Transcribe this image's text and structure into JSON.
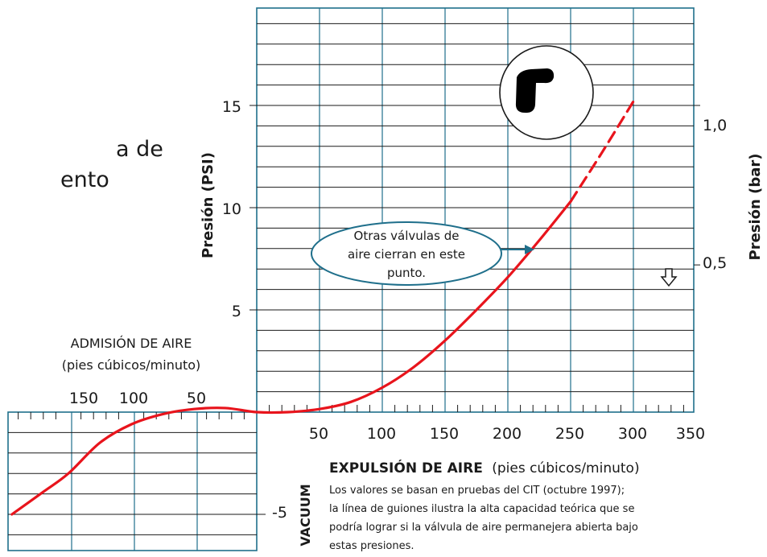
{
  "partial_text": [
    "a de",
    "ento"
  ],
  "chart_data": {
    "type": "line",
    "ylabel_left": "Presión (PSI)",
    "ylabel_right": "Presión (bar)",
    "yticks_left": [
      {
        "value": 15,
        "label": "15"
      },
      {
        "value": 10,
        "label": "10"
      },
      {
        "value": 5,
        "label": "5"
      },
      {
        "value": -5,
        "label": "-5"
      }
    ],
    "yticks_right": [
      {
        "value": 1.0,
        "label": "1,0"
      },
      {
        "value": 0.5,
        "label": "0,5"
      }
    ],
    "xticks_exhaust": [
      {
        "value": 50,
        "label": "50"
      },
      {
        "value": 100,
        "label": "100"
      },
      {
        "value": 150,
        "label": "150"
      },
      {
        "value": 200,
        "label": "200"
      },
      {
        "value": 250,
        "label": "250"
      },
      {
        "value": 300,
        "label": "300"
      },
      {
        "value": 350,
        "label": "350"
      }
    ],
    "xticks_intake": [
      {
        "value": 150,
        "label": "150"
      },
      {
        "value": 100,
        "label": "100"
      },
      {
        "value": 50,
        "label": "50"
      }
    ],
    "intake_label": "ADMISIÓN DE AIRE",
    "intake_units": "(pies cúbicos/minuto)",
    "exhaust_label_bold": "EXPULSIÓN DE AIRE",
    "exhaust_units": "(pies cúbicos/minuto)",
    "vacuum_label": "VACUUM",
    "note_lines": [
      "Los valores se basan en pruebas del CIT (octubre 1997);",
      "la línea de guiones ilustra la alta capacidad teórica que se",
      "podría lograr si la válvula de aire permanejera abierta bajo",
      "estas presiones."
    ],
    "annotation_lines": [
      "Otras válvulas de",
      "aire cierran en este",
      "punto."
    ],
    "series": [
      {
        "style": "solid",
        "color": "#e8141c",
        "points": [
          [
            -195,
            -5.0
          ],
          [
            -170,
            -3.9
          ],
          [
            -150,
            -3.0
          ],
          [
            -125,
            -1.5
          ],
          [
            -100,
            -0.6
          ],
          [
            -75,
            -0.1
          ],
          [
            -50,
            0.15
          ],
          [
            -25,
            0.2
          ],
          [
            0,
            0.0
          ],
          [
            25,
            0.0
          ],
          [
            50,
            0.15
          ],
          [
            75,
            0.5
          ],
          [
            100,
            1.2
          ],
          [
            125,
            2.2
          ],
          [
            150,
            3.5
          ],
          [
            175,
            5.0
          ],
          [
            200,
            6.6
          ],
          [
            225,
            8.4
          ],
          [
            250,
            10.3
          ]
        ]
      },
      {
        "style": "dashed",
        "color": "#e8141c",
        "points": [
          [
            250,
            10.3
          ],
          [
            275,
            12.7
          ],
          [
            300,
            15.2
          ]
        ]
      }
    ],
    "annotation_point": [
      225,
      8.0
    ],
    "down_arrow_at": [
      330,
      7.2
    ]
  }
}
